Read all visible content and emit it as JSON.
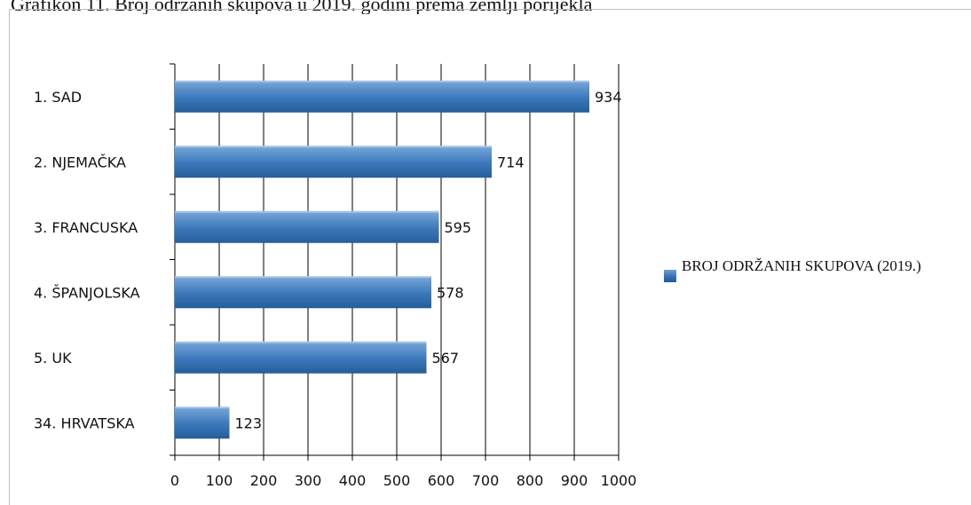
{
  "caption": "Grafikon 11. Broj održanih skupova u 2019. godini prema zemlji porijekla",
  "chart_data": {
    "type": "bar",
    "orientation": "horizontal",
    "categories": [
      "1. SAD",
      "2. NJEMAČKA",
      "3. FRANCUSKA",
      "4. ŠPANJOLSKA",
      "5. UK",
      "34. HRVATSKA"
    ],
    "series": [
      {
        "name": "BROJ ODRŽANIH SKUPOVA (2019.)",
        "values": [
          934,
          714,
          595,
          578,
          567,
          123
        ]
      }
    ],
    "xticks": [
      0,
      100,
      200,
      300,
      400,
      500,
      600,
      700,
      800,
      900,
      1000
    ],
    "xlim": [
      0,
      1000
    ],
    "grid": "vertical",
    "legend_position": "right",
    "colors": {
      "bar_top": "#7aa8da",
      "bar_mid": "#3a78bb",
      "bar_bottom": "#255d99",
      "grid": "#000000"
    }
  },
  "legend": {
    "label": "BROJ ODRŽANIH SKUPOVA (2019.)"
  }
}
